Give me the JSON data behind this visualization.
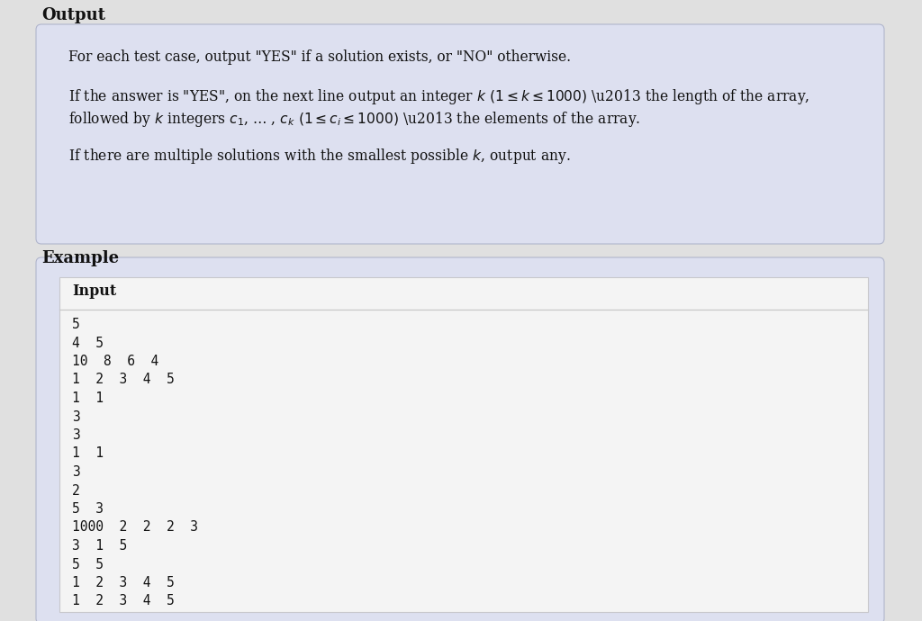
{
  "background_color": "#e0e0e0",
  "output_title": "Output",
  "output_box_bg": "#dde0f0",
  "output_box_border": "#b0b5cc",
  "output_lines": [
    "For each test case, output \"YES\" if a solution exists, or \"NO\" otherwise.",
    "If the answer is \"YES\", on the next line output an integer $k$ $(1 \\leq k \\leq 1000)$ – the length of the array,",
    "followed by $k$ integers $c_1$, $\\ldots$ , $c_k$ $(1 \\leq c_i \\leq 1000)$ – the elements of the array.",
    "If there are multiple solutions with the smallest possible $k$, output any."
  ],
  "example_title": "Example",
  "example_box_bg": "#dde0f0",
  "example_box_border": "#b0b5cc",
  "inner_box_bg": "#f4f4f4",
  "inner_box_border": "#c8c8cc",
  "input_label": "Input",
  "input_lines": [
    "5",
    "4  5",
    "10  8  6  4",
    "1  2  3  4  5",
    "1  1",
    "3",
    "3",
    "1  1",
    "3",
    "2",
    "5  3",
    "1000  2  2  2  3",
    "3  1  5",
    "5  5",
    "1  2  3  4  5",
    "1  2  3  4  5"
  ]
}
